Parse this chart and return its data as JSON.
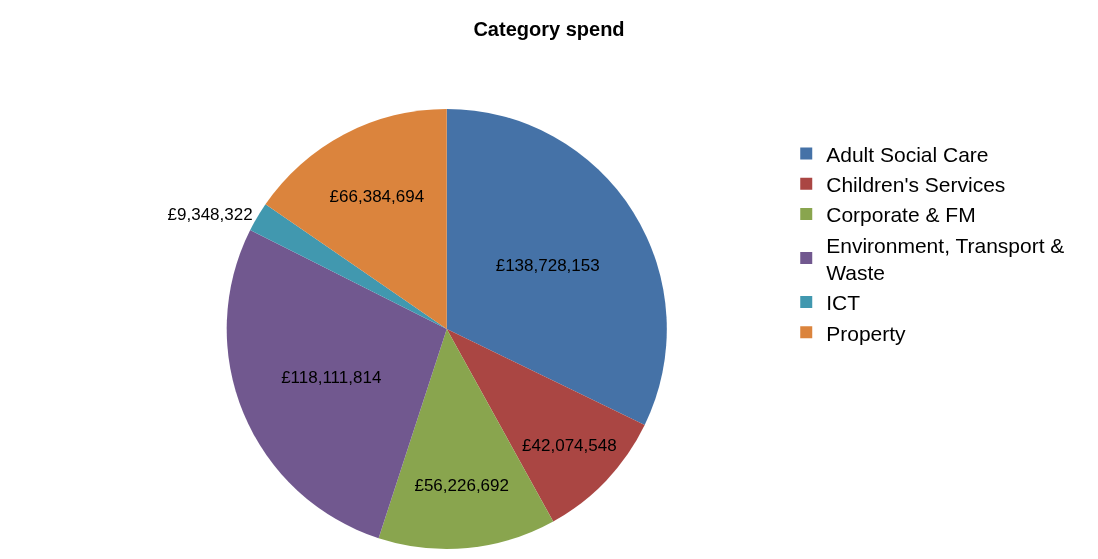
{
  "chart_data": {
    "type": "pie",
    "title": "Category spend",
    "categories": [
      "Adult Social Care",
      "Children's Services",
      "Corporate & FM",
      "Environment, Transport & Waste",
      "ICT",
      "Property"
    ],
    "values": [
      138728153,
      42074548,
      56226692,
      118111814,
      9348322,
      66384694
    ],
    "value_labels": [
      "£138,728,153",
      "£42,074,548",
      "£56,226,692",
      "£118,111,814",
      "£9,348,322",
      "£66,384,694"
    ],
    "colors": [
      "#4572a7",
      "#aa4643",
      "#89a54e",
      "#71588f",
      "#4198af",
      "#db843d"
    ],
    "legend": "right"
  }
}
